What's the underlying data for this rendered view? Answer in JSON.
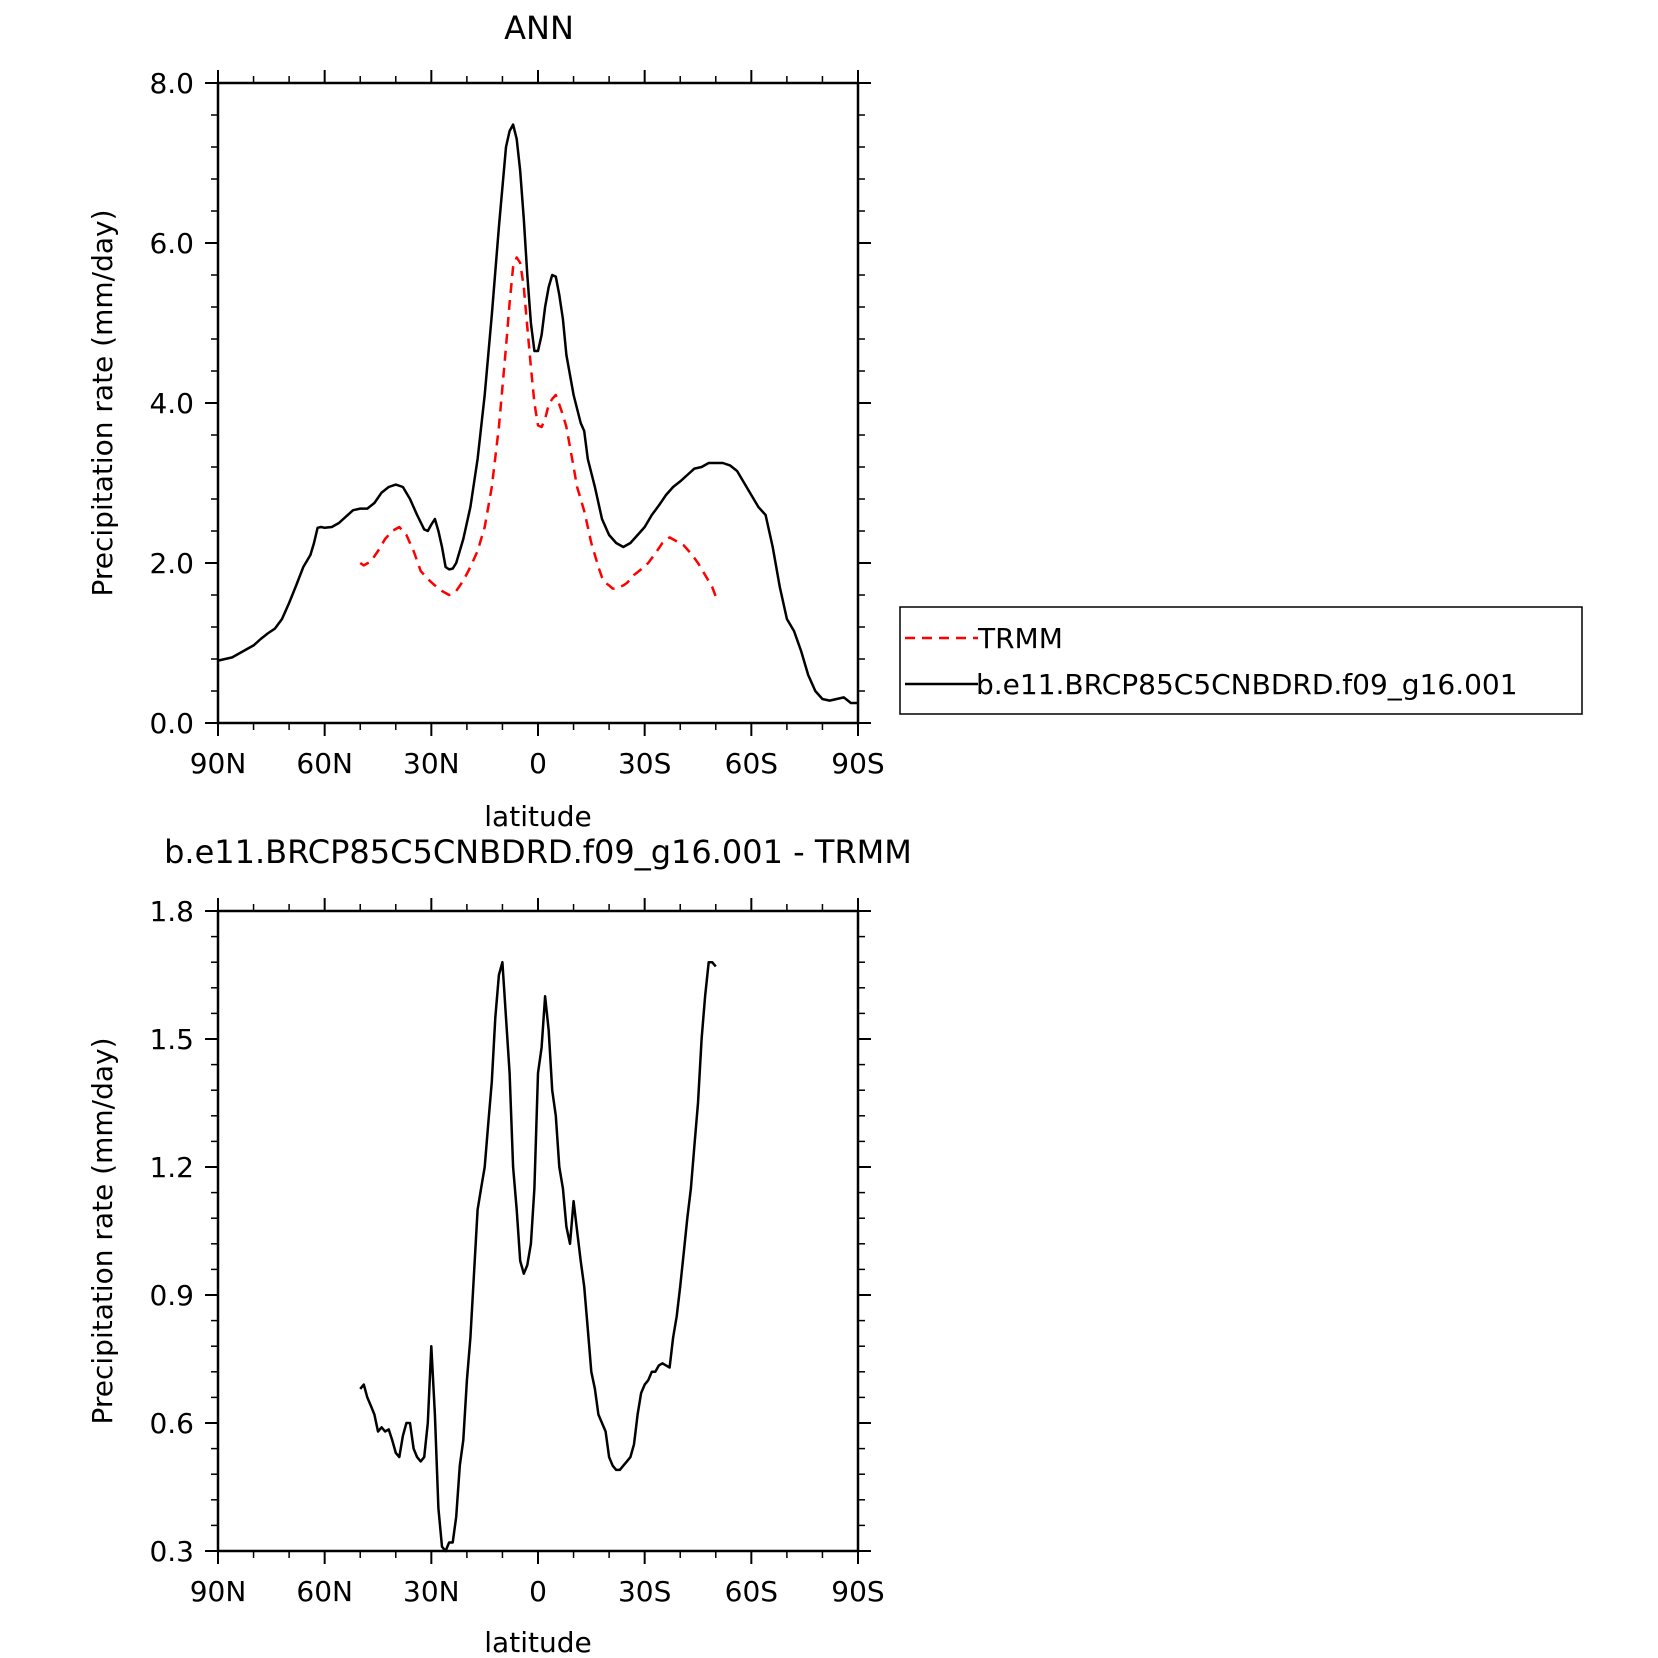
{
  "chart_data": [
    {
      "type": "line",
      "title": "ANN",
      "xlabel": "latitude",
      "ylabel": "Precipitation rate (mm/day)",
      "xlim": [
        90,
        -90
      ],
      "ylim": [
        0,
        8
      ],
      "xticks": [
        90,
        60,
        30,
        0,
        -30,
        -60,
        -90
      ],
      "xtick_labels": [
        "90N",
        "60N",
        "30N",
        "0",
        "30S",
        "60S",
        "90S"
      ],
      "yticks": [
        0,
        2,
        4,
        6,
        8
      ],
      "ytick_labels": [
        "0.0",
        "2.0",
        "4.0",
        "6.0",
        "8.0"
      ],
      "legend": "right-outside",
      "series": [
        {
          "name": "TRMM",
          "color": "#ff0000",
          "dash": "dashed",
          "x": [
            50,
            49,
            47,
            45,
            43,
            41,
            39,
            37,
            35,
            33,
            31,
            29,
            27,
            25,
            23,
            21,
            19,
            17,
            15,
            13,
            11,
            9,
            8,
            7,
            6,
            5,
            4,
            3,
            2,
            1,
            0,
            -1,
            -2,
            -3,
            -4,
            -5,
            -6,
            -7,
            -8,
            -9,
            -10,
            -11,
            -12,
            -13,
            -14,
            -15,
            -16,
            -17,
            -18,
            -19,
            -20,
            -21,
            -22,
            -23,
            -24,
            -25,
            -27,
            -29,
            -31,
            -33,
            -35,
            -37,
            -39,
            -41,
            -43,
            -45,
            -47,
            -49,
            -50
          ],
          "values": [
            2.0,
            1.97,
            2.02,
            2.15,
            2.3,
            2.4,
            2.45,
            2.35,
            2.15,
            1.9,
            1.8,
            1.72,
            1.65,
            1.6,
            1.65,
            1.78,
            1.95,
            2.15,
            2.45,
            2.95,
            3.7,
            4.7,
            5.25,
            5.7,
            5.82,
            5.75,
            5.45,
            4.95,
            4.45,
            4.0,
            3.72,
            3.7,
            3.8,
            3.98,
            4.05,
            4.1,
            3.98,
            3.85,
            3.7,
            3.45,
            3.2,
            2.95,
            2.8,
            2.65,
            2.45,
            2.25,
            2.1,
            1.95,
            1.82,
            1.75,
            1.72,
            1.68,
            1.68,
            1.7,
            1.72,
            1.75,
            1.85,
            1.92,
            2.0,
            2.12,
            2.25,
            2.32,
            2.27,
            2.22,
            2.12,
            2.0,
            1.85,
            1.7,
            1.58
          ]
        },
        {
          "name": "b.e11.BRCP85C5CNBDRD.f09_g16.001",
          "color": "#000000",
          "dash": "solid",
          "x": [
            90,
            88,
            86,
            84,
            82,
            80,
            78,
            76,
            74,
            72,
            70,
            68,
            66,
            64,
            63,
            62,
            61,
            60,
            58,
            56,
            54,
            52,
            50,
            48,
            46,
            44,
            42,
            40,
            38,
            36,
            34,
            32,
            31,
            30,
            29,
            28,
            27,
            26,
            25,
            24,
            23,
            21,
            19,
            17,
            15,
            13,
            11,
            9,
            8,
            7,
            6,
            5,
            4,
            3,
            2,
            1,
            0,
            -1,
            -2,
            -3,
            -4,
            -5,
            -6,
            -7,
            -8,
            -10,
            -12,
            -13,
            -14,
            -16,
            -18,
            -20,
            -22,
            -24,
            -26,
            -28,
            -30,
            -32,
            -34,
            -36,
            -38,
            -40,
            -42,
            -44,
            -46,
            -48,
            -50,
            -52,
            -54,
            -56,
            -58,
            -60,
            -62,
            -64,
            -66,
            -68,
            -70,
            -72,
            -74,
            -76,
            -78,
            -80,
            -82,
            -84,
            -86,
            -88,
            -90
          ],
          "values": [
            0.78,
            0.8,
            0.82,
            0.87,
            0.92,
            0.97,
            1.05,
            1.12,
            1.18,
            1.3,
            1.5,
            1.72,
            1.95,
            2.1,
            2.25,
            2.44,
            2.45,
            2.44,
            2.45,
            2.5,
            2.58,
            2.66,
            2.68,
            2.68,
            2.75,
            2.88,
            2.95,
            2.98,
            2.95,
            2.8,
            2.6,
            2.42,
            2.4,
            2.48,
            2.55,
            2.4,
            2.2,
            1.95,
            1.92,
            1.93,
            2.0,
            2.3,
            2.7,
            3.3,
            4.1,
            5.1,
            6.2,
            7.2,
            7.4,
            7.48,
            7.3,
            6.9,
            6.3,
            5.6,
            5.0,
            4.65,
            4.65,
            4.85,
            5.2,
            5.45,
            5.6,
            5.58,
            5.35,
            5.05,
            4.6,
            4.1,
            3.75,
            3.65,
            3.3,
            2.95,
            2.55,
            2.35,
            2.25,
            2.2,
            2.25,
            2.35,
            2.45,
            2.6,
            2.72,
            2.85,
            2.95,
            3.02,
            3.1,
            3.18,
            3.2,
            3.25,
            3.25,
            3.25,
            3.22,
            3.15,
            3.0,
            2.85,
            2.7,
            2.6,
            2.2,
            1.7,
            1.3,
            1.15,
            0.9,
            0.6,
            0.4,
            0.3,
            0.28,
            0.3,
            0.32,
            0.25,
            0.25
          ]
        }
      ]
    },
    {
      "type": "line",
      "title": "b.e11.BRCP85C5CNBDRD.f09_g16.001 - TRMM",
      "xlabel": "latitude",
      "ylabel": "Precipitation rate (mm/day)",
      "xlim": [
        90,
        -90
      ],
      "ylim": [
        0.3,
        1.8
      ],
      "xticks": [
        90,
        60,
        30,
        0,
        -30,
        -60,
        -90
      ],
      "xtick_labels": [
        "90N",
        "60N",
        "30N",
        "0",
        "30S",
        "60S",
        "90S"
      ],
      "yticks": [
        0.3,
        0.6,
        0.9,
        1.2,
        1.5,
        1.8
      ],
      "ytick_labels": [
        "0.3",
        "0.6",
        "0.9",
        "1.2",
        "1.5",
        "1.8"
      ],
      "series": [
        {
          "color": "#000000",
          "dash": "solid",
          "x": [
            50,
            49,
            48,
            47,
            46,
            45,
            44,
            43,
            42,
            41,
            40,
            39,
            38,
            37,
            36,
            35,
            34,
            33,
            32,
            31,
            30,
            29,
            28,
            27,
            26,
            25,
            24,
            23,
            22,
            21,
            20,
            19,
            18,
            17,
            16,
            15,
            14,
            13,
            12,
            11,
            10,
            9,
            8,
            7,
            6,
            5,
            4,
            3,
            2,
            1,
            0,
            -1,
            -2,
            -3,
            -4,
            -5,
            -6,
            -7,
            -8,
            -9,
            -10,
            -11,
            -12,
            -13,
            -14,
            -15,
            -16,
            -17,
            -18,
            -19,
            -20,
            -21,
            -22,
            -23,
            -24,
            -25,
            -26,
            -27,
            -28,
            -29,
            -30,
            -31,
            -32,
            -33,
            -34,
            -35,
            -36,
            -37,
            -38,
            -39,
            -40,
            -41,
            -42,
            -43,
            -44,
            -45,
            -46,
            -47,
            -48,
            -49,
            -50
          ],
          "values": [
            0.68,
            0.69,
            0.66,
            0.64,
            0.62,
            0.58,
            0.59,
            0.58,
            0.585,
            0.56,
            0.53,
            0.52,
            0.57,
            0.6,
            0.6,
            0.54,
            0.52,
            0.51,
            0.52,
            0.6,
            0.78,
            0.62,
            0.4,
            0.31,
            0.3,
            0.32,
            0.32,
            0.38,
            0.5,
            0.56,
            0.7,
            0.8,
            0.95,
            1.1,
            1.15,
            1.2,
            1.3,
            1.4,
            1.55,
            1.65,
            1.68,
            1.55,
            1.42,
            1.2,
            1.1,
            0.98,
            0.95,
            0.97,
            1.02,
            1.15,
            1.42,
            1.48,
            1.6,
            1.52,
            1.38,
            1.32,
            1.2,
            1.15,
            1.06,
            1.02,
            1.12,
            1.05,
            0.98,
            0.92,
            0.82,
            0.72,
            0.68,
            0.62,
            0.6,
            0.58,
            0.52,
            0.5,
            0.49,
            0.49,
            0.5,
            0.51,
            0.52,
            0.55,
            0.62,
            0.67,
            0.69,
            0.7,
            0.72,
            0.72,
            0.735,
            0.74,
            0.735,
            0.73,
            0.8,
            0.85,
            0.92,
            1.0,
            1.08,
            1.15,
            1.25,
            1.35,
            1.5,
            1.6,
            1.68,
            1.68,
            1.67
          ]
        }
      ]
    }
  ]
}
